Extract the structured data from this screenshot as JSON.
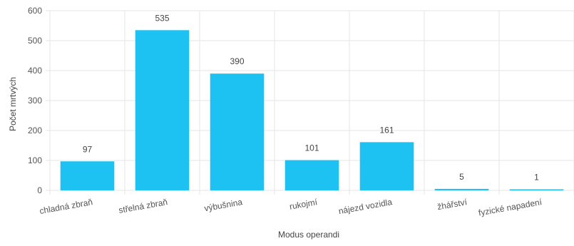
{
  "chart_data": {
    "type": "bar",
    "categories": [
      "chladná zbraň",
      "střelná zbraň",
      "výbušnina",
      "rukojmí",
      "nájezd vozidla",
      "žhářství",
      "fyzické napadení"
    ],
    "values": [
      97,
      535,
      390,
      101,
      161,
      5,
      1
    ],
    "xlabel": "Modus operandi",
    "ylabel": "Počet mrtvých",
    "ylim": [
      0,
      600
    ],
    "yticks": [
      0,
      100,
      200,
      300,
      400,
      500,
      600
    ],
    "bar_color": "#1ec2f2",
    "grid": true,
    "data_labels": true
  }
}
